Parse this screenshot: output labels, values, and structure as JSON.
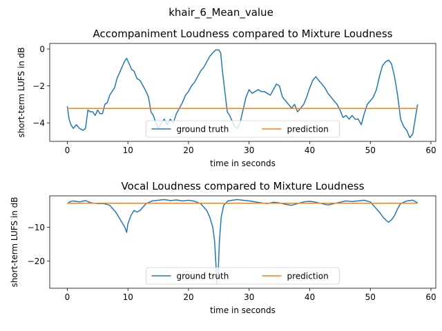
{
  "figure": {
    "suptitle": "khair_6_Mean_value"
  },
  "colors": {
    "ground_truth": "#1f77b4",
    "prediction": "#ff7f0e",
    "axis": "#000000",
    "legend_border": "#cccccc"
  },
  "chart_data": [
    {
      "type": "line",
      "title": "Accompaniment Loudness compared to Mixture Loudness",
      "xlabel": "time in seconds",
      "ylabel": "short-term LUFS in dB",
      "xlim": [
        -2.9,
        60.8
      ],
      "ylim": [
        -5.0,
        0.3
      ],
      "xticks": [
        0,
        10,
        20,
        30,
        40,
        50,
        60
      ],
      "yticks": [
        -4,
        -2,
        0
      ],
      "grid": false,
      "legend": {
        "placement": "lower-center",
        "ncol": 2
      },
      "series": [
        {
          "name": "ground truth",
          "color_key": "ground_truth",
          "points": [
            [
              0,
              -3.1
            ],
            [
              0.3,
              -3.8
            ],
            [
              0.6,
              -4.1
            ],
            [
              1,
              -4.3
            ],
            [
              1.5,
              -4.1
            ],
            [
              2,
              -4.3
            ],
            [
              2.6,
              -4.4
            ],
            [
              3,
              -4.3
            ],
            [
              3.4,
              -3.3
            ],
            [
              3.8,
              -3.4
            ],
            [
              4.2,
              -3.4
            ],
            [
              4.6,
              -3.6
            ],
            [
              5.0,
              -3.3
            ],
            [
              5.4,
              -3.5
            ],
            [
              5.8,
              -3.5
            ],
            [
              6.2,
              -3.0
            ],
            [
              6.6,
              -2.9
            ],
            [
              7.0,
              -2.5
            ],
            [
              7.4,
              -2.3
            ],
            [
              7.8,
              -2.1
            ],
            [
              8.2,
              -1.6
            ],
            [
              8.6,
              -1.3
            ],
            [
              9.0,
              -1.0
            ],
            [
              9.4,
              -0.7
            ],
            [
              9.8,
              -0.5
            ],
            [
              10.2,
              -0.8
            ],
            [
              10.6,
              -1.1
            ],
            [
              11.0,
              -1.2
            ],
            [
              11.5,
              -1.6
            ],
            [
              12.0,
              -1.7
            ],
            [
              12.5,
              -2.0
            ],
            [
              13.0,
              -2.3
            ],
            [
              13.4,
              -2.6
            ],
            [
              13.8,
              -3.4
            ],
            [
              14.2,
              -3.6
            ],
            [
              14.6,
              -4.0
            ],
            [
              15.0,
              -4.3
            ],
            [
              15.5,
              -4.0
            ],
            [
              16.0,
              -3.8
            ],
            [
              16.5,
              -4.1
            ],
            [
              17.0,
              -3.8
            ],
            [
              17.5,
              -4.0
            ],
            [
              18.0,
              -3.5
            ],
            [
              18.5,
              -3.2
            ],
            [
              19.0,
              -2.9
            ],
            [
              19.5,
              -2.5
            ],
            [
              20.0,
              -2.3
            ],
            [
              20.5,
              -2.0
            ],
            [
              21.0,
              -1.8
            ],
            [
              21.5,
              -1.5
            ],
            [
              22.0,
              -1.2
            ],
            [
              22.5,
              -1.0
            ],
            [
              23.0,
              -0.7
            ],
            [
              23.5,
              -0.4
            ],
            [
              24.0,
              -0.2
            ],
            [
              24.5,
              -0.05
            ],
            [
              25.0,
              -0.05
            ],
            [
              25.3,
              -0.2
            ],
            [
              25.6,
              -1.2
            ],
            [
              26.0,
              -2.3
            ],
            [
              26.4,
              -3.4
            ],
            [
              26.8,
              -3.6
            ],
            [
              27.2,
              -3.9
            ],
            [
              27.6,
              -4.2
            ],
            [
              28.0,
              -4.3
            ],
            [
              28.5,
              -4.0
            ],
            [
              29.0,
              -3.3
            ],
            [
              29.5,
              -2.6
            ],
            [
              30.0,
              -2.2
            ],
            [
              30.5,
              -2.4
            ],
            [
              31.0,
              -2.3
            ],
            [
              31.5,
              -2.2
            ],
            [
              32.0,
              -2.3
            ],
            [
              32.5,
              -2.3
            ],
            [
              33.0,
              -2.4
            ],
            [
              33.5,
              -2.5
            ],
            [
              34.0,
              -2.2
            ],
            [
              34.5,
              -1.9
            ],
            [
              35.0,
              -2.0
            ],
            [
              35.5,
              -2.6
            ],
            [
              36.0,
              -2.8
            ],
            [
              36.5,
              -3.0
            ],
            [
              37.0,
              -3.2
            ],
            [
              37.5,
              -3.0
            ],
            [
              38.0,
              -3.4
            ],
            [
              38.5,
              -3.2
            ],
            [
              39.0,
              -3.0
            ],
            [
              39.5,
              -2.6
            ],
            [
              40.0,
              -2.1
            ],
            [
              40.5,
              -1.7
            ],
            [
              41.0,
              -1.5
            ],
            [
              41.5,
              -1.7
            ],
            [
              42.0,
              -1.9
            ],
            [
              42.5,
              -2.1
            ],
            [
              43.0,
              -2.4
            ],
            [
              43.5,
              -2.6
            ],
            [
              44.0,
              -2.8
            ],
            [
              44.5,
              -3.0
            ],
            [
              45.0,
              -3.3
            ],
            [
              45.5,
              -3.7
            ],
            [
              46.0,
              -3.6
            ],
            [
              46.5,
              -3.8
            ],
            [
              47.0,
              -3.6
            ],
            [
              47.5,
              -3.8
            ],
            [
              48.0,
              -3.8
            ],
            [
              48.5,
              -4.1
            ],
            [
              49.0,
              -3.5
            ],
            [
              49.5,
              -3.0
            ],
            [
              50.0,
              -2.8
            ],
            [
              50.5,
              -2.6
            ],
            [
              51.0,
              -2.2
            ],
            [
              51.5,
              -1.5
            ],
            [
              52.0,
              -0.9
            ],
            [
              52.5,
              -0.7
            ],
            [
              53.0,
              -0.6
            ],
            [
              53.5,
              -0.8
            ],
            [
              54.0,
              -1.5
            ],
            [
              54.5,
              -2.5
            ],
            [
              55.0,
              -3.8
            ],
            [
              55.5,
              -4.2
            ],
            [
              56.0,
              -4.4
            ],
            [
              56.5,
              -4.8
            ],
            [
              57.0,
              -4.6
            ],
            [
              57.5,
              -3.6
            ],
            [
              57.8,
              -3.0
            ]
          ]
        },
        {
          "name": "prediction",
          "color_key": "prediction",
          "points": [
            [
              0,
              -3.22
            ],
            [
              57.8,
              -3.22
            ]
          ]
        }
      ]
    },
    {
      "type": "line",
      "title": "Vocal Loudness compared to Mixture Loudness",
      "xlabel": "time in seconds",
      "ylabel": "short-term LUFS in dB",
      "xlim": [
        -2.9,
        60.8
      ],
      "ylim": [
        -28.0,
        -0.7
      ],
      "xticks": [
        0,
        10,
        20,
        30,
        40,
        50,
        60
      ],
      "yticks": [
        -10,
        -20
      ],
      "grid": false,
      "legend": {
        "placement": "lower-center",
        "ncol": 2
      },
      "series": [
        {
          "name": "ground truth",
          "color_key": "ground_truth",
          "points": [
            [
              0,
              -3.0
            ],
            [
              0.5,
              -2.4
            ],
            [
              1,
              -2.2
            ],
            [
              2,
              -2.5
            ],
            [
              3,
              -2.1
            ],
            [
              4,
              -2.8
            ],
            [
              5,
              -3.0
            ],
            [
              6,
              -3.0
            ],
            [
              7,
              -3.5
            ],
            [
              7.5,
              -4.5
            ],
            [
              8,
              -5.5
            ],
            [
              8.5,
              -7.0
            ],
            [
              9,
              -8.5
            ],
            [
              9.5,
              -10.0
            ],
            [
              9.8,
              -11.5
            ],
            [
              10.0,
              -9.0
            ],
            [
              10.5,
              -6.5
            ],
            [
              11,
              -5.0
            ],
            [
              11.5,
              -5.5
            ],
            [
              12,
              -5.0
            ],
            [
              12.5,
              -4.0
            ],
            [
              13,
              -3.0
            ],
            [
              14,
              -2.2
            ],
            [
              15,
              -2.0
            ],
            [
              16,
              -1.8
            ],
            [
              17,
              -2.1
            ],
            [
              18,
              -1.9
            ],
            [
              19,
              -2.2
            ],
            [
              20,
              -2.0
            ],
            [
              21,
              -2.3
            ],
            [
              22,
              -3.0
            ],
            [
              22.5,
              -4.0
            ],
            [
              23,
              -5.0
            ],
            [
              23.5,
              -7.0
            ],
            [
              24,
              -10.0
            ],
            [
              24.3,
              -14.0
            ],
            [
              24.5,
              -20.0
            ],
            [
              24.7,
              -26.5
            ],
            [
              24.9,
              -23.0
            ],
            [
              25.1,
              -14.0
            ],
            [
              25.4,
              -7.0
            ],
            [
              25.8,
              -3.5
            ],
            [
              26.5,
              -2.2
            ],
            [
              28,
              -1.8
            ],
            [
              29,
              -2.0
            ],
            [
              30,
              -2.2
            ],
            [
              31,
              -2.5
            ],
            [
              32,
              -2.8
            ],
            [
              33,
              -3.0
            ],
            [
              34,
              -2.6
            ],
            [
              35,
              -2.8
            ],
            [
              36,
              -3.2
            ],
            [
              37,
              -3.5
            ],
            [
              38,
              -3.0
            ],
            [
              39,
              -2.5
            ],
            [
              40,
              -2.3
            ],
            [
              41,
              -2.6
            ],
            [
              42,
              -3.0
            ],
            [
              43,
              -3.4
            ],
            [
              44,
              -3.0
            ],
            [
              45,
              -2.6
            ],
            [
              46,
              -2.2
            ],
            [
              47,
              -2.4
            ],
            [
              48,
              -2.2
            ],
            [
              49,
              -2.0
            ],
            [
              50,
              -2.5
            ],
            [
              50.5,
              -3.5
            ],
            [
              51,
              -4.5
            ],
            [
              51.5,
              -5.5
            ],
            [
              52,
              -6.8
            ],
            [
              52.5,
              -7.8
            ],
            [
              53,
              -8.5
            ],
            [
              53.5,
              -7.8
            ],
            [
              54,
              -6.5
            ],
            [
              54.5,
              -4.5
            ],
            [
              55,
              -3.0
            ],
            [
              56,
              -2.2
            ],
            [
              57,
              -2.0
            ],
            [
              57.8,
              -2.8
            ]
          ]
        },
        {
          "name": "prediction",
          "color_key": "prediction",
          "points": [
            [
              0,
              -2.9
            ],
            [
              57.8,
              -2.9
            ]
          ]
        }
      ]
    }
  ]
}
